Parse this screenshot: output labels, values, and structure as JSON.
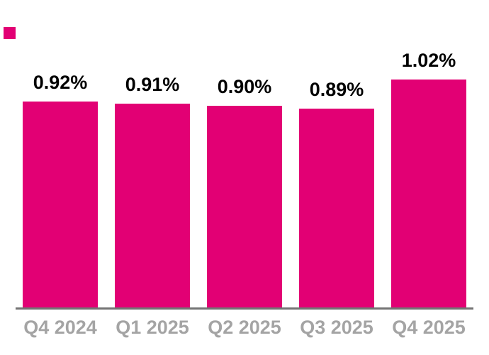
{
  "chart_data": {
    "type": "bar",
    "title": "",
    "categories": [
      "Q4 2024",
      "Q1 2025",
      "Q2 2025",
      "Q3 2025",
      "Q4 2025"
    ],
    "values": [
      0.92,
      0.91,
      0.9,
      0.89,
      1.02
    ],
    "value_labels": [
      "0.92%",
      "0.91%",
      "0.90%",
      "0.89%",
      "1.02%"
    ],
    "unit": "%",
    "xlabel": "",
    "ylabel": "",
    "ylim": [
      0,
      1.37
    ],
    "grid": false,
    "legend_position": "none",
    "y_axis_visible": false,
    "x_axis_visible": true,
    "colors": {
      "bar": "#E20074",
      "value_label": "#000000",
      "category_label": "#A4A4A4",
      "axis_line": "#747474",
      "background": "#FFFFFF"
    }
  },
  "decorations": {
    "corner_swatch_color": "#E20074"
  }
}
